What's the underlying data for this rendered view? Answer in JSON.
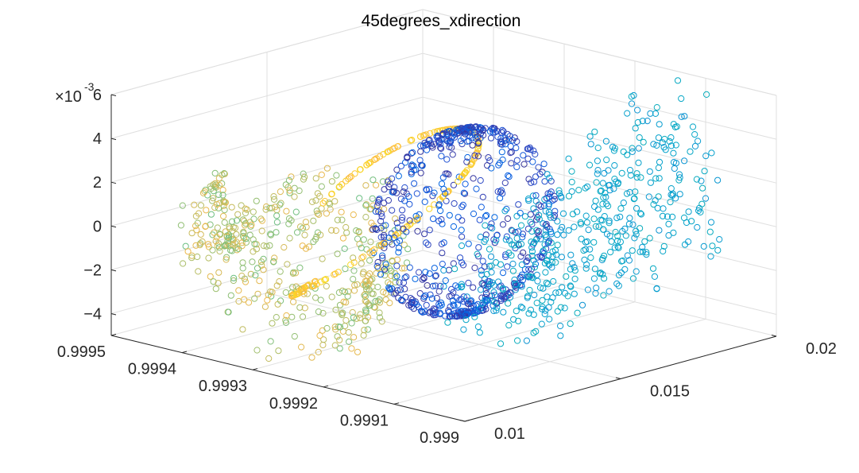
{
  "window": {
    "title": "45degrees_xdirection"
  },
  "chart_data": {
    "type": "scatter3",
    "title": "45degrees_xdirection",
    "marker": "o",
    "colormap": "parula",
    "view": {
      "azimuth": -37.5,
      "elevation": 30
    },
    "grid": true,
    "box": "on",
    "xaxis": {
      "label": "",
      "lim": [
        0.999,
        0.9995
      ],
      "ticks": [
        0.999,
        0.9991,
        0.9992,
        0.9993,
        0.9994,
        0.9995
      ],
      "ticklabels": [
        "0.999",
        "0.9991",
        "0.9992",
        "0.9993",
        "0.9994",
        "0.9995"
      ]
    },
    "yaxis": {
      "label": "",
      "lim": [
        0.01,
        0.02
      ],
      "ticks": [
        0.01,
        0.015,
        0.02
      ],
      "ticklabels": [
        "0.01",
        "0.015",
        "0.02"
      ]
    },
    "zaxis": {
      "label": "",
      "lim": [
        -0.005,
        0.006
      ],
      "ticks": [
        -4,
        -2,
        0,
        2,
        4,
        6
      ],
      "ticklabels": [
        "-4",
        "-2",
        "0",
        "2",
        "4",
        "6"
      ],
      "exponent_label": "×10",
      "exponent": "-3"
    },
    "point_count_estimate": 1800,
    "clusters": [
      {
        "color_group": "blue-purple",
        "description": "dense vertical shell",
        "x_range": [
          0.99915,
          0.99925
        ],
        "y_range": [
          0.012,
          0.017
        ],
        "z_range": [
          -0.0035,
          0.0052
        ]
      },
      {
        "color_group": "teal-cyan",
        "description": "wing band",
        "x_range": [
          0.99905,
          0.9992
        ],
        "y_range": [
          0.013,
          0.02
        ],
        "z_range": [
          -0.004,
          0.0055
        ]
      },
      {
        "color_group": "green-yellow",
        "description": "outer shell",
        "x_range": [
          0.99925,
          0.99945
        ],
        "y_range": [
          0.01,
          0.016
        ],
        "z_range": [
          -0.0045,
          0.003
        ]
      },
      {
        "color_group": "orange",
        "description": "sparse inner arcs",
        "x_range": [
          0.9992,
          0.9994
        ],
        "y_range": [
          0.011,
          0.016
        ],
        "z_range": [
          -0.003,
          0.0045
        ]
      }
    ]
  }
}
